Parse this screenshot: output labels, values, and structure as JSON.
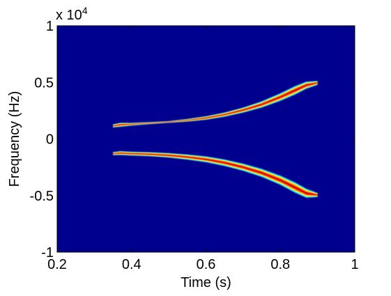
{
  "chart_data": {
    "type": "heatmap",
    "title": "",
    "xlabel": "Time (s)",
    "ylabel": "Frequency (Hz)",
    "xlim": [
      0.2,
      1.0
    ],
    "ylim": [
      -10000,
      10000
    ],
    "x_ticks": [
      0.2,
      0.4,
      0.6,
      0.8,
      1.0
    ],
    "x_tick_labels": [
      "0.2",
      "0.4",
      "0.6",
      "0.8",
      "1"
    ],
    "y_ticks": [
      -10000,
      -5000,
      0,
      5000,
      10000
    ],
    "y_tick_labels": [
      "-1",
      "-0.5",
      "0",
      "0.5",
      "1"
    ],
    "y_exponent_label": "x 10",
    "y_exponent_power": "4",
    "colormap": "jet",
    "background_color": "#00008f",
    "series": [
      {
        "t": [
          0.35,
          0.37,
          0.4,
          0.45,
          0.5,
          0.55,
          0.6,
          0.65,
          0.7,
          0.75,
          0.8,
          0.84,
          0.87,
          0.9
        ],
        "f": [
          1150,
          1250,
          1300,
          1400,
          1500,
          1650,
          1850,
          2150,
          2550,
          3050,
          3700,
          4300,
          4750,
          4950
        ],
        "half": [
          140,
          180,
          120,
          90,
          80,
          120,
          160,
          190,
          230,
          280,
          340,
          380,
          320,
          170
        ]
      },
      {
        "t": [
          0.35,
          0.37,
          0.4,
          0.45,
          0.5,
          0.55,
          0.6,
          0.65,
          0.7,
          0.75,
          0.8,
          0.84,
          0.87,
          0.9
        ],
        "f": [
          -1300,
          -1250,
          -1300,
          -1350,
          -1450,
          -1600,
          -1800,
          -2100,
          -2500,
          -3000,
          -3650,
          -4300,
          -4800,
          -4950
        ],
        "half": [
          140,
          170,
          170,
          180,
          200,
          230,
          260,
          290,
          320,
          360,
          410,
          460,
          400,
          180
        ]
      }
    ]
  }
}
